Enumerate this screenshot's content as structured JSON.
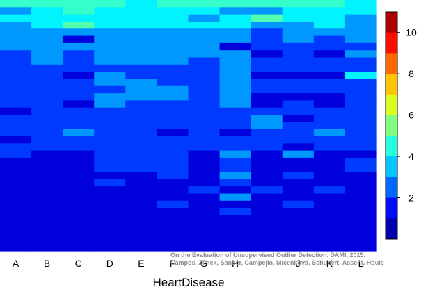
{
  "chart_data": {
    "type": "heatmap",
    "xlabel": "HeartDisease",
    "ylabel": "",
    "title": "",
    "categories": [
      "A",
      "B",
      "C",
      "D",
      "E",
      "F",
      "G",
      "H",
      "I",
      "J",
      "K",
      "L"
    ],
    "colorbar": {
      "ticks": [
        2,
        4,
        6,
        8,
        10
      ],
      "range": [
        0,
        11
      ],
      "colormap": "jet"
    },
    "grid": false,
    "rows": 35,
    "values": [
      [
        4.7,
        4.7,
        4.7,
        4.7,
        4.0,
        4.7,
        4.7,
        4.7,
        4.7,
        4.7,
        4.7,
        4.0
      ],
      [
        3.0,
        4.0,
        4.7,
        4.0,
        4.0,
        4.0,
        4.0,
        3.0,
        3.0,
        4.0,
        4.0,
        4.0
      ],
      [
        4.0,
        4.0,
        4.0,
        4.0,
        4.0,
        4.0,
        3.0,
        4.0,
        5.0,
        4.0,
        4.0,
        3.0
      ],
      [
        3.0,
        4.0,
        5.0,
        4.0,
        4.0,
        4.0,
        4.0,
        4.0,
        3.0,
        3.0,
        4.0,
        3.0
      ],
      [
        3.0,
        3.0,
        3.0,
        3.0,
        3.0,
        3.0,
        3.0,
        3.0,
        2.0,
        3.0,
        3.0,
        3.0
      ],
      [
        3.0,
        3.0,
        1.0,
        3.0,
        3.0,
        3.0,
        3.0,
        3.0,
        2.0,
        3.0,
        2.0,
        3.0
      ],
      [
        3.0,
        3.0,
        3.0,
        3.0,
        3.0,
        3.0,
        3.0,
        1.0,
        2.0,
        2.0,
        2.0,
        2.0
      ],
      [
        2.0,
        3.0,
        2.0,
        3.0,
        3.0,
        3.0,
        3.0,
        3.0,
        1.0,
        2.0,
        1.0,
        3.0
      ],
      [
        2.0,
        3.0,
        2.0,
        3.0,
        3.0,
        3.0,
        2.0,
        3.0,
        2.0,
        2.0,
        2.0,
        2.0
      ],
      [
        2.0,
        2.0,
        2.0,
        2.0,
        2.0,
        2.0,
        2.0,
        3.0,
        2.0,
        2.0,
        2.0,
        2.0
      ],
      [
        2.0,
        2.0,
        1.0,
        3.0,
        2.0,
        2.0,
        2.0,
        3.0,
        1.0,
        1.0,
        1.0,
        4.0
      ],
      [
        2.0,
        2.0,
        2.0,
        3.0,
        3.0,
        2.0,
        2.0,
        3.0,
        2.0,
        2.0,
        2.0,
        2.0
      ],
      [
        2.0,
        2.0,
        2.0,
        2.0,
        3.0,
        3.0,
        2.0,
        3.0,
        2.0,
        2.0,
        2.0,
        2.0
      ],
      [
        2.0,
        2.0,
        2.0,
        3.0,
        3.0,
        3.0,
        2.0,
        3.0,
        1.0,
        1.0,
        1.0,
        2.0
      ],
      [
        2.0,
        2.0,
        1.0,
        3.0,
        2.0,
        2.0,
        2.0,
        3.0,
        1.0,
        2.0,
        1.0,
        2.0
      ],
      [
        1.0,
        2.0,
        2.0,
        2.0,
        2.0,
        2.0,
        2.0,
        2.0,
        2.0,
        2.0,
        2.0,
        2.0
      ],
      [
        2.0,
        2.0,
        2.0,
        2.0,
        2.0,
        2.0,
        2.0,
        2.0,
        3.0,
        1.0,
        2.0,
        2.0
      ],
      [
        2.0,
        2.0,
        2.0,
        2.0,
        2.0,
        2.0,
        2.0,
        2.0,
        3.0,
        2.0,
        2.0,
        2.0
      ],
      [
        2.0,
        2.0,
        3.0,
        2.0,
        2.0,
        1.0,
        2.0,
        1.0,
        2.0,
        2.0,
        3.0,
        2.0
      ],
      [
        1.0,
        2.0,
        2.0,
        2.0,
        2.0,
        2.0,
        2.0,
        2.0,
        2.0,
        2.0,
        2.0,
        2.0
      ],
      [
        2.0,
        2.0,
        2.0,
        2.0,
        2.0,
        2.0,
        2.0,
        2.0,
        2.0,
        1.0,
        2.0,
        2.0
      ],
      [
        2.0,
        1.0,
        1.0,
        2.0,
        2.0,
        2.0,
        1.0,
        3.0,
        1.0,
        3.0,
        1.0,
        1.0
      ],
      [
        1.0,
        1.0,
        1.0,
        2.0,
        2.0,
        2.0,
        1.0,
        2.0,
        1.0,
        1.0,
        1.0,
        2.0
      ],
      [
        1.0,
        1.0,
        1.0,
        2.0,
        2.0,
        2.0,
        1.0,
        2.0,
        1.0,
        1.0,
        1.0,
        2.0
      ],
      [
        1.0,
        1.0,
        1.0,
        1.0,
        1.0,
        2.0,
        1.0,
        3.0,
        1.0,
        2.0,
        1.0,
        1.0
      ],
      [
        1.0,
        1.0,
        1.0,
        2.0,
        1.0,
        1.0,
        1.0,
        2.0,
        1.0,
        1.0,
        1.0,
        1.0
      ],
      [
        1.0,
        1.0,
        1.0,
        1.0,
        1.0,
        1.0,
        2.0,
        1.0,
        2.0,
        1.0,
        2.0,
        1.0
      ],
      [
        1.0,
        1.0,
        1.0,
        1.0,
        1.0,
        1.0,
        1.0,
        3.0,
        1.0,
        1.0,
        1.0,
        1.0
      ],
      [
        1.0,
        1.0,
        1.0,
        1.0,
        1.0,
        2.0,
        1.0,
        1.0,
        1.0,
        2.0,
        1.0,
        1.0
      ],
      [
        1.0,
        1.0,
        1.0,
        1.0,
        1.0,
        1.0,
        1.0,
        2.0,
        1.0,
        1.0,
        1.0,
        1.0
      ],
      [
        1.0,
        1.0,
        1.0,
        1.0,
        1.0,
        1.0,
        1.0,
        1.0,
        1.0,
        1.0,
        1.0,
        1.0
      ],
      [
        1.0,
        1.0,
        1.0,
        1.0,
        1.0,
        1.0,
        1.0,
        1.0,
        1.0,
        1.0,
        1.0,
        1.0
      ],
      [
        1.0,
        1.0,
        1.0,
        1.0,
        1.0,
        1.0,
        1.0,
        1.0,
        1.0,
        1.0,
        1.0,
        1.0
      ],
      [
        1.0,
        1.0,
        1.0,
        1.0,
        1.0,
        1.0,
        1.0,
        1.0,
        1.0,
        1.0,
        1.0,
        1.0
      ],
      [
        1.0,
        1.0,
        1.0,
        1.0,
        1.0,
        1.0,
        1.0,
        1.0,
        1.0,
        1.0,
        1.0,
        1.0
      ]
    ]
  },
  "credit": {
    "line1": "On the Evaluation of Unsupervised Outlier Detection. DAMI, 2015.",
    "line2": "Campos, Zimek, Sander, Campello, Micenková, Schubert, Assent, Houle"
  }
}
